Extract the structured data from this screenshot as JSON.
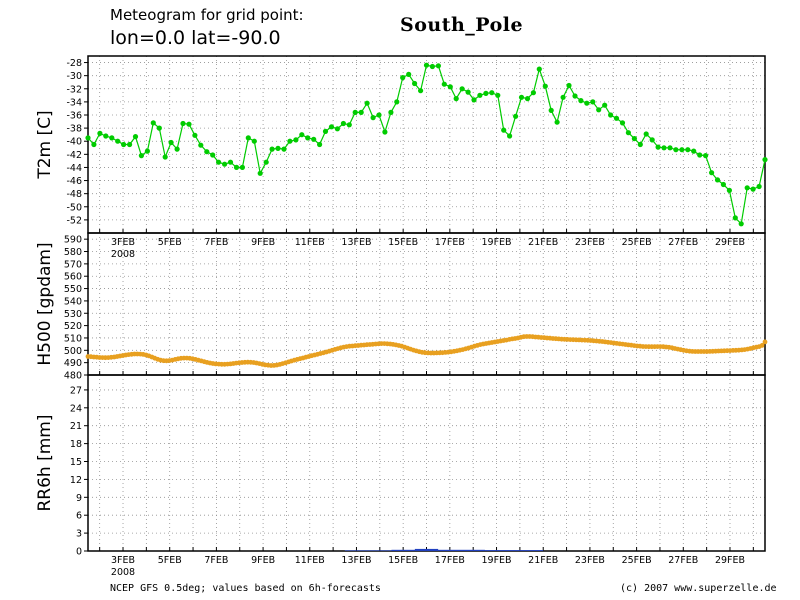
{
  "header": {
    "line1": "Meteogram for grid point:",
    "line2": "lon=0.0  lat=-90.0",
    "location": "South_Pole"
  },
  "footer": {
    "source": "NCEP GFS 0.5deg; values based on 6h-forecasts",
    "credit": "(c) 2007 www.superzelle.de"
  },
  "colors": {
    "temp": "#00cc00",
    "height": "#e8a020",
    "precip": "#2040c0",
    "grid": "#909090"
  },
  "chart_data": [
    {
      "type": "line",
      "ylabel": "T2m [C]",
      "ylim": [
        -54,
        -27
      ],
      "yticks": [
        -52,
        -50,
        -48,
        -46,
        -44,
        -42,
        -40,
        -38,
        -36,
        -34,
        -32,
        -30,
        -28
      ],
      "x_start_day": 1.5,
      "x_step_days": 0.25,
      "x_end_day": 30.5,
      "date_ticks": [
        "3FEB",
        "5FEB",
        "7FEB",
        "9FEB",
        "11FEB",
        "13FEB",
        "15FEB",
        "17FEB",
        "19FEB",
        "21FEB",
        "23FEB",
        "25FEB",
        "27FEB",
        "29FEB"
      ],
      "year_label": "2008",
      "series": [
        {
          "values": [
            -39.5,
            -40.5,
            -38.8,
            -39.2,
            -39.5,
            -40,
            -40.5,
            -40.5,
            -39.3,
            -42.2,
            -41.5,
            -37.2,
            -38,
            -42.4,
            -40.2,
            -41.2,
            -37.3,
            -37.4,
            -39.1,
            -40.6,
            -41.6,
            -42.1,
            -43.2,
            -43.5,
            -43.2,
            -44,
            -44,
            -39.5,
            -40,
            -44.9,
            -43.2,
            -41.2,
            -41.1,
            -41.2,
            -40,
            -39.8,
            -39,
            -39.5,
            -39.7,
            -40.5,
            -38.5,
            -37.8,
            -38.1,
            -37.3,
            -37.5,
            -35.6,
            -35.6,
            -34.2,
            -36.4,
            -36,
            -38.6,
            -35.6,
            -34,
            -30.3,
            -29.8,
            -31.2,
            -32.3,
            -28.4,
            -28.6,
            -28.5,
            -31.3,
            -31.7,
            -33.5,
            -32,
            -32.5,
            -33.7,
            -33,
            -32.7,
            -32.6,
            -33,
            -38.3,
            -39.2,
            -36.2,
            -33.3,
            -33.5,
            -32.6,
            -29,
            -31.6,
            -35.3,
            -37.1,
            -33.3,
            -31.5,
            -33.1,
            -33.8,
            -34.2,
            -34,
            -35.2,
            -34.5,
            -36,
            -36.5,
            -37.2,
            -38.7,
            -39.6,
            -40.5,
            -38.9,
            -39.8,
            -40.9,
            -41,
            -41,
            -41.3,
            -41.3,
            -41.3,
            -41.5,
            -42.1,
            -42.2,
            -44.8,
            -45.9,
            -46.6,
            -47.5,
            -51.7,
            -52.6,
            -47.1,
            -47.3,
            -46.9,
            -42.8
          ]
        }
      ]
    },
    {
      "type": "line",
      "ylabel": "H500 [gpdam]",
      "ylim": [
        480,
        595
      ],
      "yticks": [
        480,
        490,
        500,
        510,
        520,
        530,
        540,
        550,
        560,
        570,
        580,
        590
      ],
      "series": [
        {
          "values": [
            495,
            494.8,
            494.6,
            494.4,
            494.2,
            494.1,
            494,
            494.1,
            494.3,
            494.6,
            495,
            495.4,
            495.8,
            496.2,
            496.5,
            496.8,
            497,
            497,
            496.9,
            496.7,
            496.2,
            495.5,
            494.6,
            493.6,
            492.7,
            492,
            491.6,
            491.5,
            491.7,
            492.1,
            492.6,
            493.1,
            493.5,
            493.7,
            493.7,
            493.5,
            493.1,
            492.6,
            492,
            491.4,
            490.8,
            490.2,
            489.7,
            489.3,
            489,
            488.8,
            488.7,
            488.7,
            488.8,
            489,
            489.3,
            489.6,
            489.9,
            490.1,
            490.3,
            490.4,
            490.3,
            490.1,
            489.7,
            489.2,
            488.7,
            488.2,
            487.9,
            487.7,
            487.8,
            488.1,
            488.6,
            489.2,
            489.9,
            490.6,
            491.3,
            492,
            492.6,
            493.2,
            493.8,
            494.4,
            495,
            495.6,
            496.2,
            496.8,
            497.4,
            498,
            498.6,
            499.3,
            500,
            500.7,
            501.4,
            502,
            502.6,
            503,
            503.3,
            503.5,
            503.7,
            503.9,
            504.1,
            504.3,
            504.5,
            504.7,
            504.9,
            505.1,
            505.3,
            505.4,
            505.4,
            505.3,
            505.1,
            504.8,
            504.4,
            503.9,
            503.3,
            502.6,
            501.8,
            501,
            500.2,
            499.5,
            498.9,
            498.4,
            498.1,
            497.9,
            497.8,
            497.8,
            497.9,
            498,
            498.1,
            498.3,
            498.5,
            498.8,
            499.2,
            499.6,
            500.1,
            500.6,
            501.2,
            501.9,
            502.6,
            503.3,
            504,
            504.6,
            505.1,
            505.5,
            505.9,
            506.3,
            506.7,
            507.1,
            507.5,
            507.9,
            508.3,
            508.8,
            509.2,
            509.6,
            510,
            510.5,
            511,
            511.2,
            511.2,
            511,
            510.8,
            510.6,
            510.4,
            510.2,
            510,
            509.8,
            509.6,
            509.4,
            509.2,
            509,
            508.9,
            508.8,
            508.7,
            508.6,
            508.5,
            508.4,
            508.3,
            508.2,
            508.1,
            507.9,
            507.7,
            507.5,
            507.3,
            507.1,
            506.8,
            506.5,
            506.2,
            505.9,
            505.6,
            505.3,
            505,
            504.7,
            504.4,
            504.1,
            503.8,
            503.5,
            503.3,
            503.1,
            503,
            502.9,
            502.9,
            502.9,
            503,
            503,
            502.9,
            502.7,
            502.4,
            502,
            501.5,
            501,
            500.5,
            500,
            499.6,
            499.3,
            499.1,
            499,
            499,
            499,
            499,
            499,
            499.1,
            499.2,
            499.3,
            499.4,
            499.5,
            499.6,
            499.7,
            499.8,
            499.9,
            500,
            500.1,
            500.3,
            500.6,
            501,
            501.5,
            502,
            502.5,
            503,
            504,
            506.8
          ]
        }
      ]
    },
    {
      "type": "bar",
      "ylabel": "RR6h [mm]",
      "ylim": [
        0,
        29.5
      ],
      "yticks": [
        0,
        3,
        6,
        9,
        12,
        15,
        18,
        21,
        24,
        27
      ],
      "date_ticks": [
        "3FEB",
        "5FEB",
        "7FEB",
        "9FEB",
        "11FEB",
        "13FEB",
        "15FEB",
        "17FEB",
        "19FEB",
        "21FEB",
        "23FEB",
        "25FEB",
        "27FEB",
        "29FEB"
      ],
      "year_label": "2008",
      "series": [
        {
          "segments": [
            {
              "from": 12.5,
              "to": 14.5,
              "value": 0.1
            },
            {
              "from": 14.5,
              "to": 15.5,
              "value": 0.2
            },
            {
              "from": 15.5,
              "to": 16.5,
              "value": 0.35
            },
            {
              "from": 16.5,
              "to": 18.5,
              "value": 0.2
            },
            {
              "from": 18.5,
              "to": 21.0,
              "value": 0.15
            }
          ]
        }
      ]
    }
  ]
}
